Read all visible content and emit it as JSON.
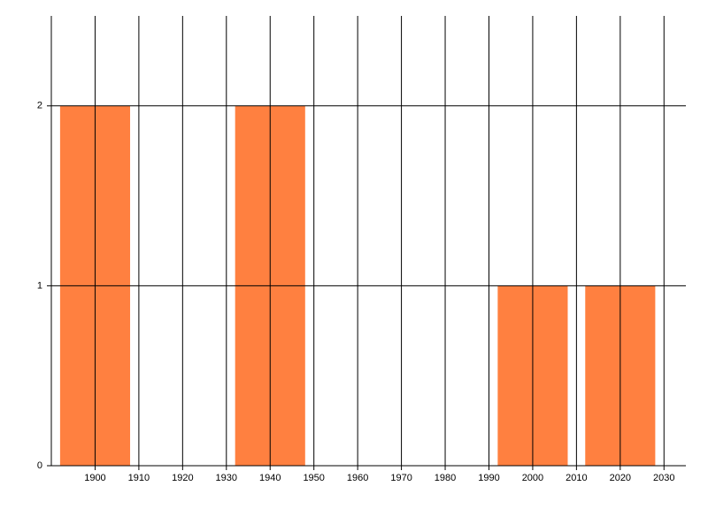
{
  "chart_data": {
    "type": "bar",
    "x": [
      1900,
      1940,
      2000,
      2020
    ],
    "values": [
      2,
      2,
      1,
      1
    ],
    "color": "#ff8040",
    "xlim": [
      1890,
      2035
    ],
    "xticks": [
      1900,
      1910,
      1920,
      1930,
      1940,
      1950,
      1960,
      1970,
      1980,
      1990,
      2000,
      2010,
      2020,
      2030
    ],
    "ylim": [
      0,
      2.5
    ],
    "yticks": [
      0,
      1,
      2
    ],
    "grid": true
  }
}
